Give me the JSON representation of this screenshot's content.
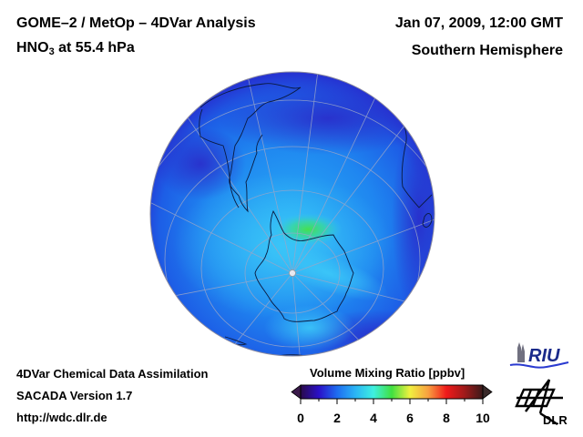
{
  "header": {
    "title_main": "GOME–2 / MetOp – 4DVar Analysis",
    "species_prefix": "HNO",
    "species_subscript": "3",
    "species_suffix": " at 55.4 hPa",
    "date": "Jan 07, 2009, 12:00 GMT",
    "region": "Southern Hemisphere"
  },
  "footer": {
    "line1": "4DVar Chemical Data Assimilation",
    "line2": "SACADA Version 1.7",
    "line3": "http://wdc.dlr.de"
  },
  "logos": {
    "riu": "RIU",
    "dlr": "DLR"
  },
  "colors": {
    "globe_dark": "#2a2fd8",
    "globe_mid": "#1e6cf0",
    "globe_light": "#2aa8f5",
    "globe_high": "#3ee08a",
    "grid": "#9aa6c8",
    "coast": "#0a1a40"
  },
  "chart_data": {
    "type": "heatmap",
    "title": "GOME–2 / MetOp – 4DVar Analysis",
    "subtitle": "HNO3 at 55.4 hPa",
    "projection": "orthographic, Southern Hemisphere",
    "colorbar": {
      "label": "Volume Mixing Ratio [ppbv]",
      "range": [
        0,
        10
      ],
      "ticks": [
        0,
        2,
        4,
        6,
        8,
        10
      ],
      "tick_labels": [
        "0",
        "2",
        "4",
        "6",
        "8",
        "10"
      ],
      "extend": "both",
      "colormap": [
        {
          "value": 0,
          "color": "#2a0a4a"
        },
        {
          "value": 1,
          "color": "#2a10c8"
        },
        {
          "value": 2,
          "color": "#1e6cf0"
        },
        {
          "value": 3,
          "color": "#2ab4f5"
        },
        {
          "value": 4,
          "color": "#3ef0e0"
        },
        {
          "value": 5,
          "color": "#40e040"
        },
        {
          "value": 6,
          "color": "#f0f040"
        },
        {
          "value": 7,
          "color": "#f8a040"
        },
        {
          "value": 8,
          "color": "#f01a1a"
        },
        {
          "value": 9,
          "color": "#a01a1a"
        },
        {
          "value": 10,
          "color": "#3a1a1a"
        }
      ]
    },
    "field_summary": {
      "background_ppbv": 2,
      "polar_band_ppbv": 3,
      "maximum_ppbv": 5,
      "maximum_region": "off Antarctic Peninsula / Weddell Sea"
    }
  }
}
